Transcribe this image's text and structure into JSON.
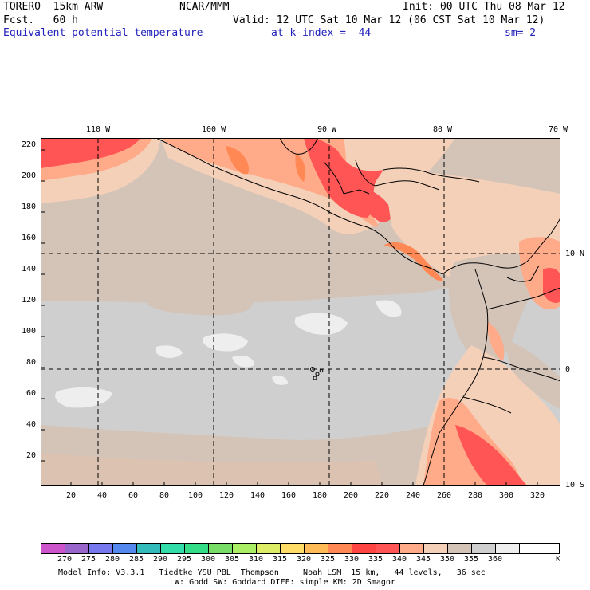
{
  "header": {
    "model": "TORERO  15km ARW",
    "org": "NCAR/MMM",
    "init": "Init: 00 UTC Thu 08 Mar 12",
    "fcst": "Fcst.   60 h",
    "valid": "Valid: 12 UTC Sat 10 Mar 12 (06 CST Sat 10 Mar 12)",
    "field": "Equivalent potential temperature",
    "level": "at k-index =  44",
    "smooth": "sm= 2"
  },
  "axes": {
    "top_lon": [
      "110 W",
      "100 W",
      "90 W",
      "80 W",
      "70 W"
    ],
    "right_lat": [
      "10 N",
      "0",
      "10 S"
    ],
    "left_grid": [
      "220",
      "200",
      "180",
      "160",
      "140",
      "120",
      "100",
      "80",
      "60",
      "40",
      "20"
    ],
    "bottom_grid": [
      "20",
      "40",
      "60",
      "80",
      "100",
      "120",
      "140",
      "160",
      "180",
      "200",
      "220",
      "240",
      "260",
      "280",
      "300",
      "320"
    ]
  },
  "colorbar": {
    "unit": "K",
    "labels": [
      "270",
      "275",
      "280",
      "285",
      "290",
      "295",
      "300",
      "305",
      "310",
      "315",
      "320",
      "325",
      "330",
      "335",
      "340",
      "345",
      "350",
      "355",
      "360"
    ],
    "colors": [
      "#cc55cc",
      "#9966cc",
      "#7777ee",
      "#5588ee",
      "#33bbbb",
      "#33ddaa",
      "#33dd88",
      "#77dd66",
      "#aaee66",
      "#ddee66",
      "#ffdd66",
      "#ffbb55",
      "#ff8855",
      "#ff4444",
      "#ff5555",
      "#ffaa88",
      "#f4d0b8",
      "#d4c4b8",
      "#cfcfcf",
      "#eeeeee",
      "#ffffff"
    ]
  },
  "footer": {
    "line1": "Model Info: V3.3.1   Tiedtke YSU PBL  Thompson     Noah LSM  15 km,   44 levels,   36 sec",
    "line2": "LW: Godd SW: Goddard DIFF: simple KM: 2D Smagor"
  }
}
